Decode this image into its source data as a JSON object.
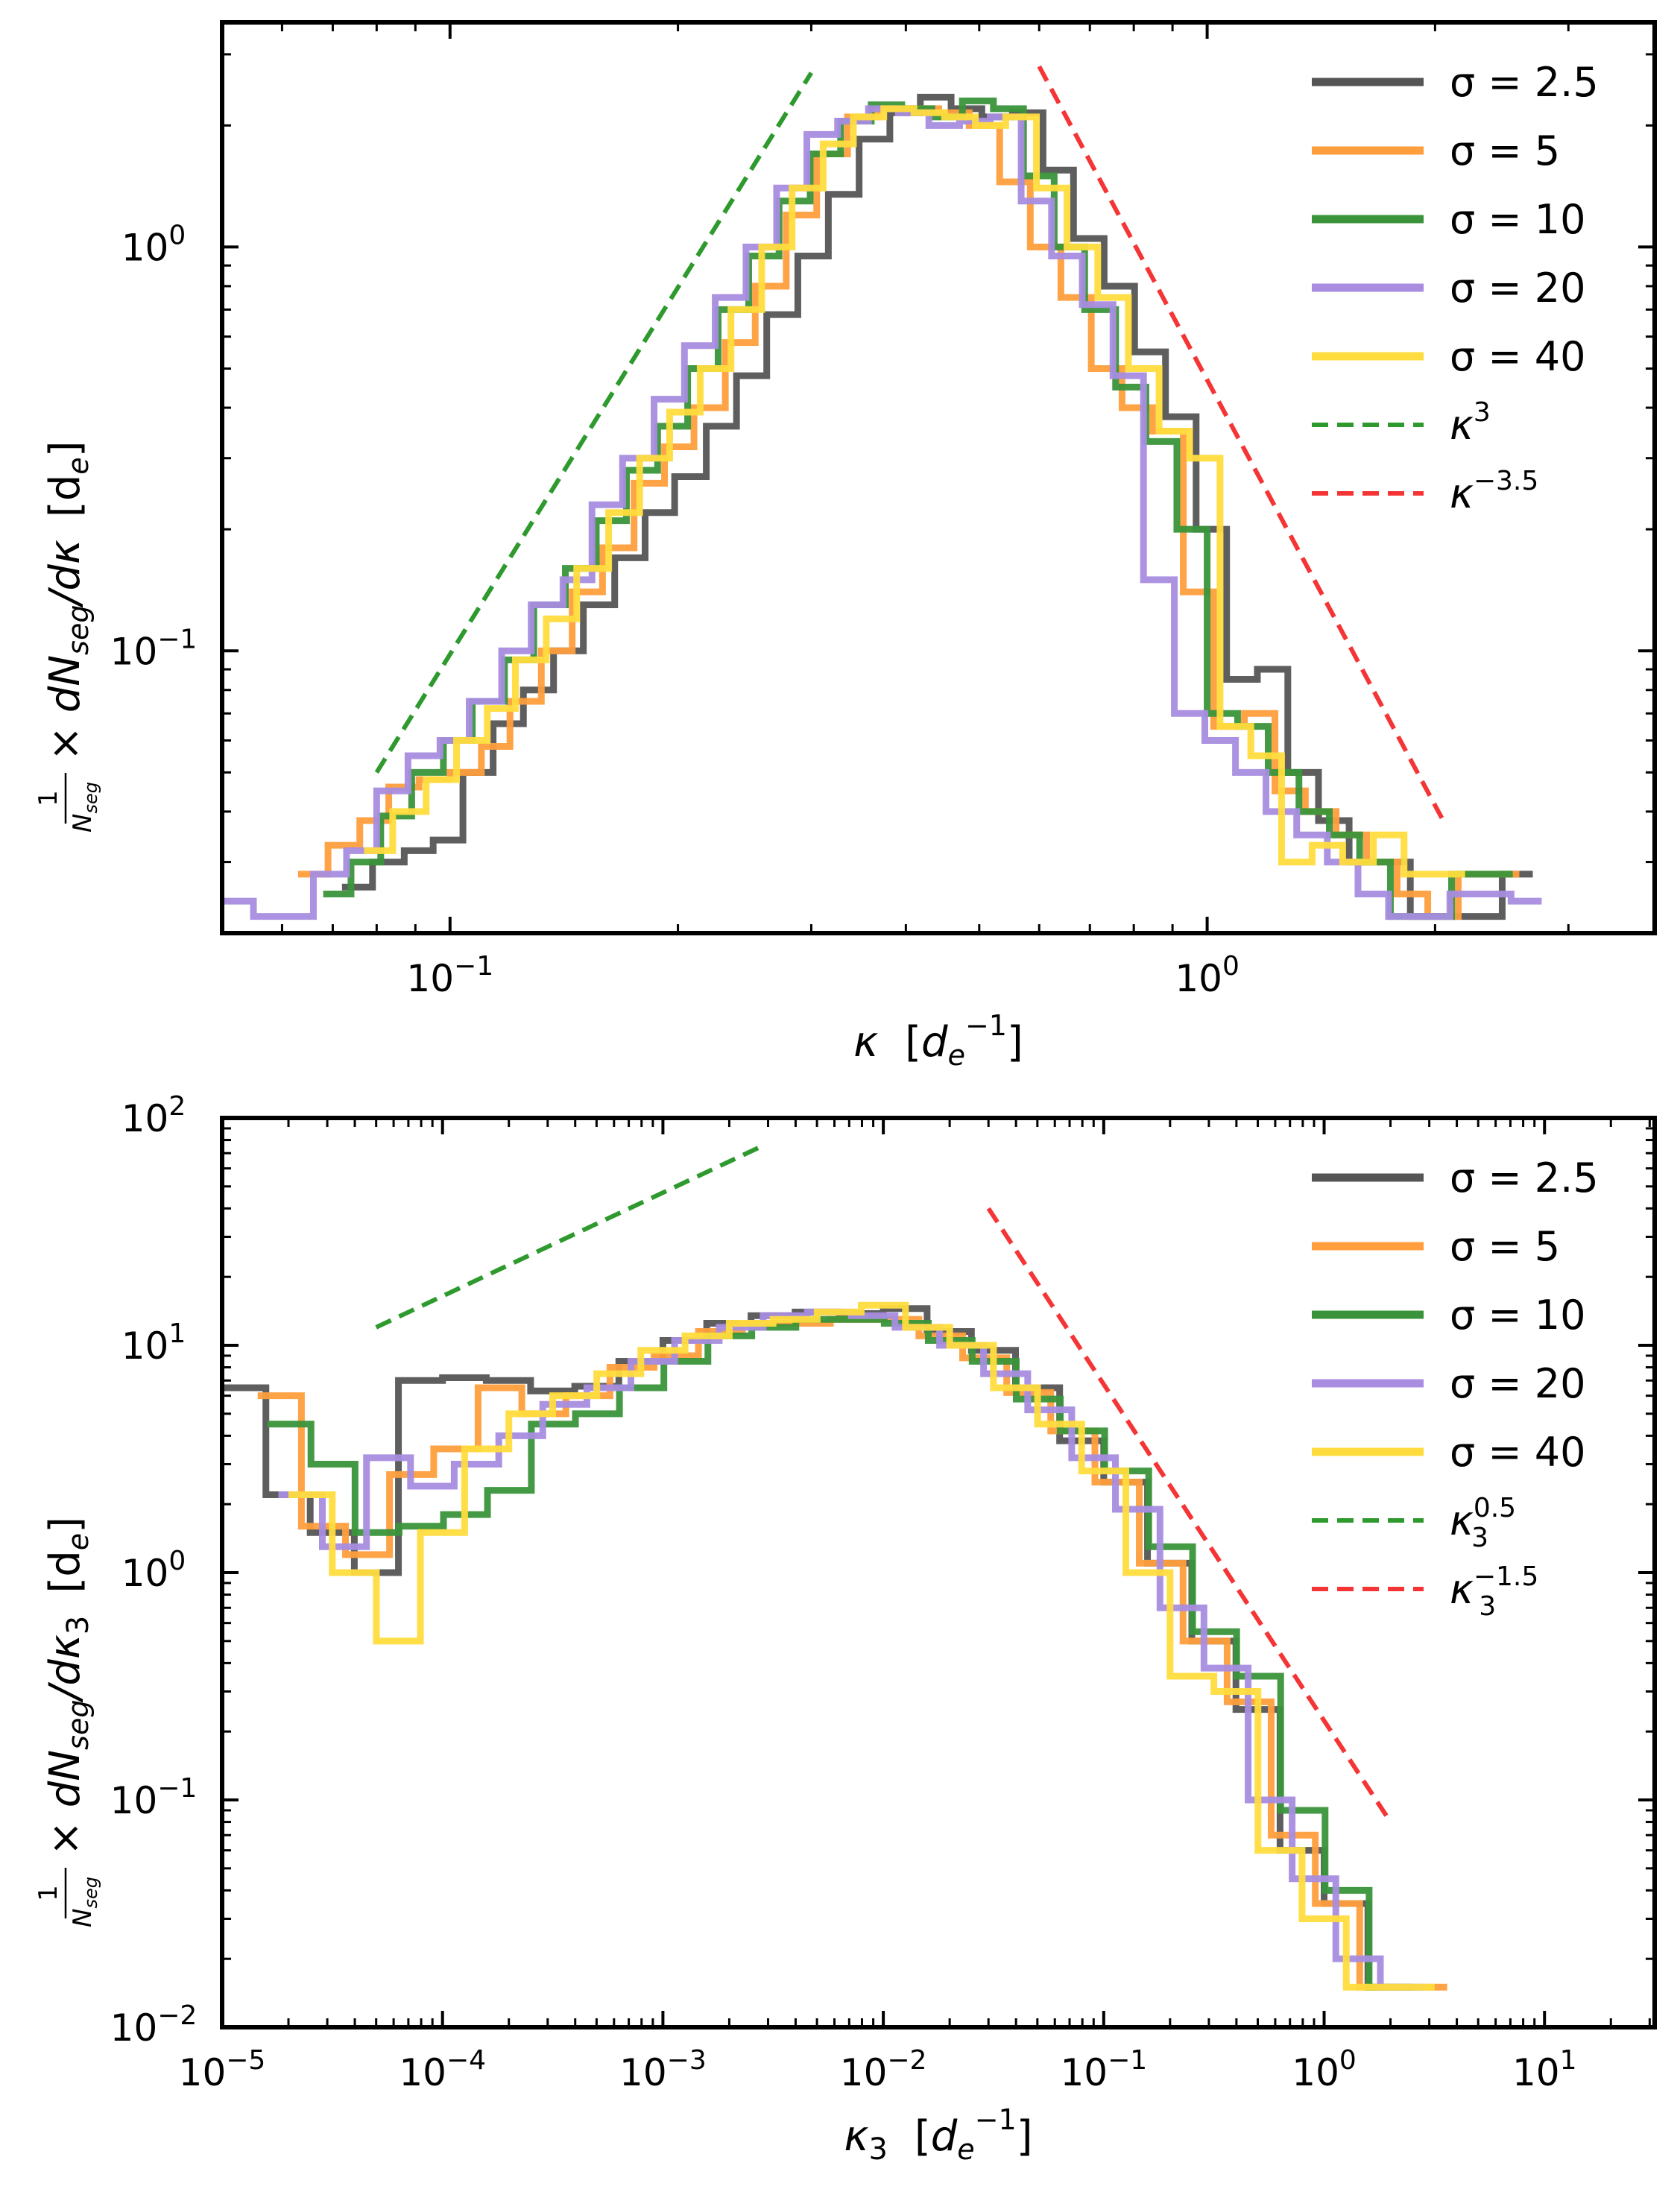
{
  "figure": {
    "panels": 2
  },
  "chart_data": [
    {
      "type": "line",
      "subtype": "step-histogram",
      "title": "",
      "scale": {
        "x": "log",
        "y": "log"
      },
      "xlim": [
        0.05,
        3.9
      ],
      "ylim": [
        0.02,
        3.6
      ],
      "xticks": [
        {
          "value": 0.1,
          "mant": "10",
          "exp": "−1"
        },
        {
          "value": 1,
          "mant": "10",
          "exp": "0"
        }
      ],
      "yticks": [
        {
          "value": 0.1,
          "mant": "10",
          "exp": "−1"
        },
        {
          "value": 1,
          "mant": "10",
          "exp": "0"
        }
      ],
      "xlabel": {
        "main": "κ",
        "units_open": "[",
        "units_var": "d",
        "units_sub": "e",
        "units_sup": "−1",
        "units_close": "]"
      },
      "ylabel": {
        "frac_num": "1",
        "frac_den": "N",
        "frac_den_sub": "seg",
        "body": "× dN",
        "body_sub": "seg",
        "body_tail": "/dκ",
        "units": "[d",
        "units_sub": "e",
        "units_close": "]"
      },
      "legend_position": "top-right",
      "series": [
        {
          "name": "σ = 2.5",
          "color": "#555555",
          "x": [
            0.072,
            0.079,
            0.087,
            0.095,
            0.104,
            0.114,
            0.125,
            0.137,
            0.15,
            0.165,
            0.181,
            0.198,
            0.218,
            0.239,
            0.262,
            0.288,
            0.316,
            0.347,
            0.381,
            0.418,
            0.459,
            0.504,
            0.553,
            0.607,
            0.666,
            0.731,
            0.802,
            0.881,
            0.967,
            1.061,
            1.165,
            1.278,
            1.403,
            1.54,
            1.69,
            1.855,
            2.036,
            2.235,
            2.453
          ],
          "y": [
            0.026,
            0.03,
            0.032,
            0.034,
            0.05,
            0.066,
            0.08,
            0.1,
            0.13,
            0.17,
            0.22,
            0.27,
            0.36,
            0.48,
            0.68,
            0.95,
            1.35,
            1.85,
            2.15,
            2.35,
            2.2,
            2.1,
            2.15,
            1.55,
            1.05,
            0.8,
            0.55,
            0.38,
            0.2,
            0.085,
            0.09,
            0.05,
            0.038,
            0.03,
            0.03,
            0.022,
            0.022,
            0.022,
            0.028
          ]
        },
        {
          "name": "σ = 5",
          "color": "#ff9e3d",
          "x": [
            0.063,
            0.069,
            0.076,
            0.083,
            0.091,
            0.1,
            0.11,
            0.12,
            0.132,
            0.145,
            0.159,
            0.175,
            0.192,
            0.21,
            0.231,
            0.253,
            0.278,
            0.305,
            0.335,
            0.367,
            0.403,
            0.442,
            0.485,
            0.532,
            0.584,
            0.641,
            0.703,
            0.772,
            0.847,
            0.93,
            1.02,
            1.12,
            1.229,
            1.348,
            1.48,
            1.624,
            1.782,
            1.956,
            2.146,
            2.355
          ],
          "y": [
            0.028,
            0.033,
            0.038,
            0.046,
            0.048,
            0.05,
            0.058,
            0.075,
            0.1,
            0.14,
            0.18,
            0.26,
            0.32,
            0.4,
            0.58,
            0.8,
            1.2,
            1.7,
            2.1,
            2.2,
            2.2,
            2.15,
            2.0,
            1.45,
            1.0,
            0.75,
            0.5,
            0.4,
            0.35,
            0.14,
            0.065,
            0.07,
            0.045,
            0.04,
            0.035,
            0.03,
            0.025,
            0.022,
            0.028,
            0.028
          ]
        },
        {
          "name": "σ = 10",
          "color": "#3a933a",
          "x": [
            0.068,
            0.074,
            0.081,
            0.089,
            0.098,
            0.107,
            0.118,
            0.129,
            0.142,
            0.156,
            0.171,
            0.188,
            0.206,
            0.226,
            0.248,
            0.272,
            0.299,
            0.328,
            0.36,
            0.395,
            0.433,
            0.475,
            0.522,
            0.572,
            0.628,
            0.689,
            0.757,
            0.83,
            0.912,
            1.0,
            1.097,
            1.204,
            1.322,
            1.45,
            1.59,
            1.746,
            1.916,
            2.103,
            2.308
          ],
          "y": [
            0.025,
            0.03,
            0.039,
            0.05,
            0.06,
            0.075,
            0.095,
            0.13,
            0.16,
            0.21,
            0.28,
            0.36,
            0.5,
            0.7,
            0.95,
            1.3,
            1.7,
            2.05,
            2.25,
            2.2,
            2.1,
            2.3,
            2.2,
            1.5,
            1.0,
            0.7,
            0.45,
            0.33,
            0.2,
            0.07,
            0.065,
            0.05,
            0.04,
            0.035,
            0.03,
            0.022,
            0.022,
            0.028,
            0.028
          ]
        },
        {
          "name": "σ = 20",
          "color": "#a88de0",
          "x": [
            0.05,
            0.055,
            0.06,
            0.066,
            0.073,
            0.08,
            0.088,
            0.097,
            0.106,
            0.117,
            0.128,
            0.141,
            0.154,
            0.169,
            0.186,
            0.204,
            0.224,
            0.246,
            0.27,
            0.296,
            0.325,
            0.357,
            0.391,
            0.429,
            0.471,
            0.517,
            0.568,
            0.623,
            0.684,
            0.751,
            0.824,
            0.905,
            0.993,
            1.09,
            1.196,
            1.313,
            1.441,
            1.582,
            1.736,
            1.906,
            2.092,
            2.296,
            2.52
          ],
          "y": [
            0.024,
            0.022,
            0.022,
            0.028,
            0.032,
            0.045,
            0.055,
            0.06,
            0.075,
            0.1,
            0.13,
            0.15,
            0.23,
            0.3,
            0.42,
            0.57,
            0.75,
            1.0,
            1.4,
            1.9,
            2.05,
            2.2,
            2.15,
            2.0,
            2.05,
            2.1,
            1.3,
            0.95,
            0.72,
            0.48,
            0.15,
            0.07,
            0.06,
            0.05,
            0.04,
            0.035,
            0.03,
            0.025,
            0.022,
            0.022,
            0.025,
            0.025,
            0.024
          ]
        },
        {
          "name": "σ = 40",
          "color": "#ffdc3d",
          "x": [
            0.077,
            0.084,
            0.093,
            0.102,
            0.112,
            0.122,
            0.134,
            0.147,
            0.162,
            0.178,
            0.195,
            0.214,
            0.235,
            0.258,
            0.283,
            0.311,
            0.341,
            0.374,
            0.41,
            0.45,
            0.494,
            0.542,
            0.595,
            0.653,
            0.717,
            0.787,
            0.864,
            0.948,
            1.04,
            1.142,
            1.254,
            1.376,
            1.51,
            1.658,
            1.82,
            1.997
          ],
          "y": [
            0.032,
            0.04,
            0.048,
            0.06,
            0.072,
            0.095,
            0.12,
            0.16,
            0.22,
            0.3,
            0.39,
            0.5,
            0.7,
            1.0,
            1.4,
            1.8,
            2.1,
            2.2,
            2.15,
            2.1,
            2.0,
            2.1,
            1.4,
            1.0,
            0.75,
            0.5,
            0.35,
            0.3,
            0.065,
            0.055,
            0.03,
            0.033,
            0.03,
            0.035,
            0.028,
            0.028
          ]
        }
      ],
      "reference_lines": [
        {
          "name": "κ3",
          "label_main": "κ",
          "label_sup": "3",
          "label_sub": "",
          "color": "#2e9a2e",
          "x": [
            0.08,
            0.3
          ],
          "y": [
            0.05,
            2.7
          ]
        },
        {
          "name": "κ−3.5",
          "label_main": "κ",
          "label_sup": "−3.5",
          "label_sub": "",
          "color": "#f53535",
          "x": [
            0.6,
            2.05
          ],
          "y": [
            2.8,
            0.038
          ]
        }
      ]
    },
    {
      "type": "line",
      "subtype": "step-histogram",
      "title": "",
      "scale": {
        "x": "log",
        "y": "log"
      },
      "xlim": [
        1e-05,
        31.6
      ],
      "ylim": [
        0.01,
        100
      ],
      "xticks": [
        {
          "value": 1e-05,
          "mant": "10",
          "exp": "−5"
        },
        {
          "value": 0.0001,
          "mant": "10",
          "exp": "−4"
        },
        {
          "value": 0.001,
          "mant": "10",
          "exp": "−3"
        },
        {
          "value": 0.01,
          "mant": "10",
          "exp": "−2"
        },
        {
          "value": 0.1,
          "mant": "10",
          "exp": "−1"
        },
        {
          "value": 1,
          "mant": "10",
          "exp": "0"
        },
        {
          "value": 10,
          "mant": "10",
          "exp": "1"
        }
      ],
      "yticks": [
        {
          "value": 0.01,
          "mant": "10",
          "exp": "−2"
        },
        {
          "value": 0.1,
          "mant": "10",
          "exp": "−1"
        },
        {
          "value": 1,
          "mant": "10",
          "exp": "0"
        },
        {
          "value": 10,
          "mant": "10",
          "exp": "1"
        },
        {
          "value": 100,
          "mant": "10",
          "exp": "2"
        }
      ],
      "xlabel": {
        "main": "κ",
        "main_sub": "3",
        "units_open": "[",
        "units_var": "d",
        "units_sub": "e",
        "units_sup": "−1",
        "units_close": "]"
      },
      "ylabel": {
        "frac_num": "1",
        "frac_den": "N",
        "frac_den_sub": "seg",
        "body": "× dN",
        "body_sub": "seg",
        "body_tail": "/dκ",
        "body_tail_sub": "3",
        "units": "[d",
        "units_sub": "e",
        "units_close": "]"
      },
      "legend_position": "top-right",
      "series": [
        {
          "name": "σ = 2.5",
          "color": "#555555",
          "x": [
            1e-05,
            1.58e-05,
            2.51e-05,
            3.98e-05,
            6.31e-05,
            0.0001,
            0.000158,
            0.000251,
            0.000398,
            0.000631,
            0.001,
            0.00158,
            0.00251,
            0.00398,
            0.00631,
            0.01,
            0.0158,
            0.0251,
            0.0398,
            0.0631,
            0.1,
            0.158,
            0.251,
            0.398,
            0.631,
            1.0,
            1.58
          ],
          "y": [
            6.5,
            2.2,
            1.5,
            1.0,
            7.0,
            7.2,
            7.0,
            6.3,
            6.6,
            8.5,
            10.5,
            12.5,
            13.5,
            14.0,
            13.8,
            14.5,
            11.5,
            9.5,
            6.5,
            3.8,
            2.5,
            1.1,
            0.5,
            0.25,
            0.06,
            0.035,
            0.015
          ]
        },
        {
          "name": "σ = 5",
          "color": "#ff9e3d",
          "x": [
            1.45e-05,
            2.29e-05,
            3.63e-05,
            5.75e-05,
            9.12e-05,
            0.000145,
            0.000229,
            0.000363,
            0.000575,
            0.000912,
            0.00145,
            0.00229,
            0.00363,
            0.00575,
            0.00912,
            0.0145,
            0.0229,
            0.0363,
            0.0575,
            0.0912,
            0.145,
            0.229,
            0.363,
            0.575,
            0.912,
            1.45,
            2.29
          ],
          "y": [
            6.0,
            1.6,
            1.2,
            2.7,
            3.5,
            6.5,
            5.0,
            6.0,
            8.0,
            9.0,
            11.5,
            12.5,
            12.5,
            13.0,
            13.0,
            11.0,
            8.8,
            6.2,
            4.2,
            2.5,
            1.1,
            0.5,
            0.27,
            0.07,
            0.035,
            0.015,
            0.015
          ]
        },
        {
          "name": "σ = 10",
          "color": "#3a933a",
          "x": [
            1.6e-05,
            2.53e-05,
            4.01e-05,
            6.35e-05,
            0.000101,
            0.00016,
            0.000253,
            0.000401,
            0.000635,
            0.00101,
            0.0016,
            0.00253,
            0.00401,
            0.00635,
            0.0101,
            0.016,
            0.0253,
            0.0401,
            0.0635,
            0.101,
            0.16,
            0.253,
            0.401,
            0.635,
            1.01,
            1.6
          ],
          "y": [
            4.5,
            3.0,
            1.5,
            1.6,
            1.8,
            2.3,
            4.5,
            5.0,
            6.5,
            8.5,
            11.0,
            12.0,
            13.0,
            13.0,
            12.5,
            10.5,
            8.5,
            5.8,
            4.2,
            2.8,
            1.3,
            0.55,
            0.35,
            0.09,
            0.04,
            0.015
          ]
        },
        {
          "name": "σ = 20",
          "color": "#a88de0",
          "x": [
            1.8e-05,
            2.85e-05,
            4.52e-05,
            7.16e-05,
            0.000113,
            0.00018,
            0.000285,
            0.000452,
            0.000716,
            0.00113,
            0.0018,
            0.00285,
            0.00452,
            0.00716,
            0.0113,
            0.018,
            0.0285,
            0.0452,
            0.0716,
            0.113,
            0.18,
            0.285,
            0.452,
            0.716,
            1.13,
            1.8
          ],
          "y": [
            2.2,
            1.3,
            3.2,
            2.4,
            3.0,
            4.0,
            5.5,
            6.5,
            8.5,
            10.5,
            12.0,
            13.5,
            14.0,
            13.5,
            12.0,
            10.0,
            7.5,
            5.2,
            3.2,
            1.9,
            0.7,
            0.38,
            0.1,
            0.045,
            0.02,
            0.015
          ]
        },
        {
          "name": "σ = 40",
          "color": "#ffdc3d",
          "x": [
            2e-05,
            3.16e-05,
            5.01e-05,
            7.94e-05,
            0.000126,
            0.0002,
            0.000316,
            0.000501,
            0.000794,
            0.00126,
            0.002,
            0.00316,
            0.00501,
            0.00794,
            0.0126,
            0.02,
            0.0316,
            0.0501,
            0.0794,
            0.126,
            0.2,
            0.316,
            0.501,
            0.794,
            1.26,
            2.0
          ],
          "y": [
            2.2,
            1.0,
            0.5,
            1.5,
            3.5,
            5.0,
            6.0,
            7.5,
            9.5,
            11.0,
            12.5,
            13.0,
            14.0,
            15.0,
            12.0,
            10.0,
            6.5,
            4.5,
            2.8,
            1.0,
            0.35,
            0.3,
            0.06,
            0.03,
            0.015,
            0.015
          ]
        }
      ],
      "reference_lines": [
        {
          "name": "κ3^0.5",
          "label_main": "κ",
          "label_sup": "0.5",
          "label_sub": "3",
          "color": "#2e9a2e",
          "x": [
            5e-05,
            0.0028
          ],
          "y": [
            12,
            75
          ]
        },
        {
          "name": "κ3^−1.5",
          "label_main": "κ",
          "label_sup": "−1.5",
          "label_sub": "3",
          "color": "#f53535",
          "x": [
            0.03,
            2.0
          ],
          "y": [
            40,
            0.08
          ]
        }
      ]
    }
  ]
}
